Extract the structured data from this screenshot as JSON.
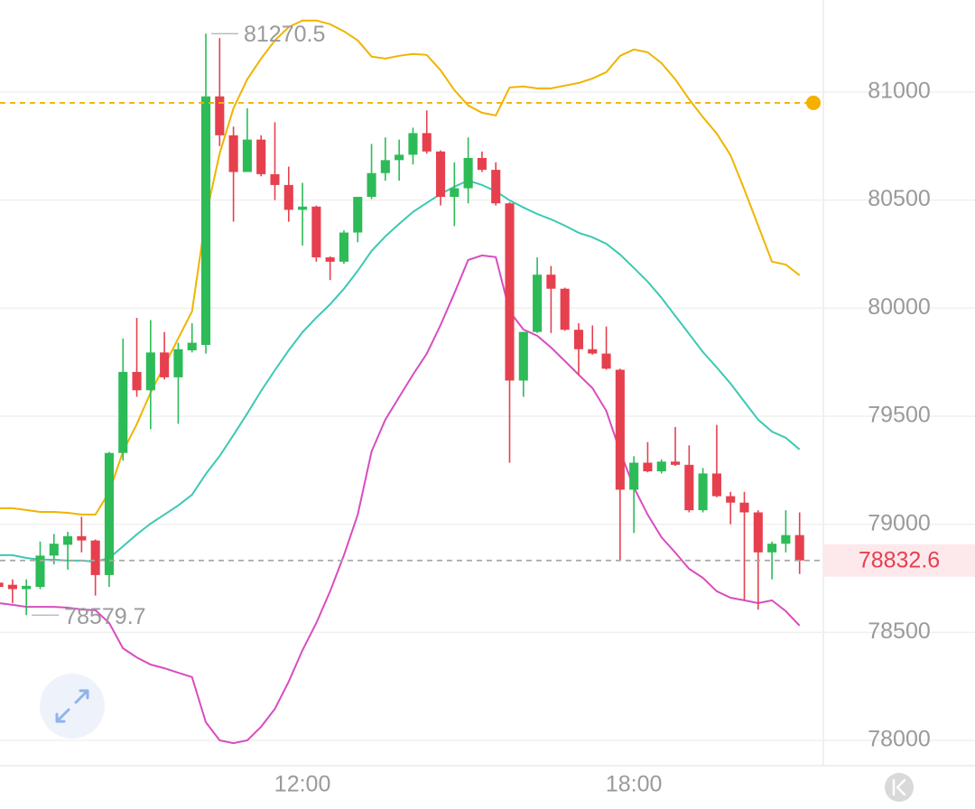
{
  "chart_data": {
    "type": "candlestick",
    "x": [
      6.5,
      6.75,
      7,
      7.25,
      7.5,
      7.75,
      8,
      8.25,
      8.5,
      8.75,
      9,
      9.25,
      9.5,
      9.75,
      10,
      10.25,
      10.5,
      10.75,
      11,
      11.25,
      11.5,
      11.75,
      12,
      12.25,
      12.5,
      12.75,
      13,
      13.25,
      13.5,
      13.75,
      14,
      14.25,
      14.5,
      14.75,
      15,
      15.25,
      15.5,
      15.75,
      16,
      16.25,
      16.5,
      16.75,
      17,
      17.25,
      17.5,
      17.75,
      18,
      18.25,
      18.5,
      18.75,
      19,
      19.25,
      19.5,
      19.75,
      20,
      20.25,
      20.5,
      20.75,
      21
    ],
    "open": [
      78730,
      78720,
      78700,
      78710,
      78855,
      78905,
      78945,
      78925,
      78765,
      79330,
      79705,
      79620,
      79795,
      79680,
      79805,
      79830,
      80980,
      80800,
      80630,
      80780,
      80620,
      80570,
      80455,
      80470,
      80235,
      80215,
      80350,
      80515,
      80625,
      80685,
      80710,
      80810,
      80725,
      80515,
      80555,
      80695,
      80640,
      80485,
      79665,
      79890,
      80155,
      80090,
      79900,
      79810,
      79790,
      79715,
      79160,
      79285,
      79245,
      79290,
      79275,
      79065,
      79235,
      79130,
      79100,
      79055,
      78870,
      78910,
      78950
    ],
    "high": [
      78745,
      78745,
      78745,
      78920,
      78955,
      78965,
      79035,
      78930,
      79335,
      79860,
      79955,
      79945,
      79890,
      79840,
      79930,
      81270.5,
      81250,
      80840,
      80925,
      80800,
      80860,
      80655,
      80580,
      80475,
      80240,
      80360,
      80515,
      80760,
      80790,
      80780,
      80835,
      80915,
      80730,
      80675,
      80790,
      80725,
      80675,
      80490,
      79890,
      80235,
      80195,
      80095,
      79930,
      79920,
      79915,
      79720,
      79315,
      79380,
      79300,
      79450,
      79365,
      79260,
      79460,
      79150,
      79150,
      79065,
      78920,
      79065,
      79055
    ],
    "low": [
      78700,
      78635,
      78579.7,
      78700,
      78815,
      78790,
      78870,
      78670,
      78710,
      79295,
      79590,
      79440,
      79670,
      79465,
      79795,
      79790,
      80750,
      80400,
      80630,
      80610,
      80500,
      80400,
      80290,
      80215,
      80130,
      80205,
      80305,
      80505,
      80590,
      80590,
      80665,
      80715,
      80475,
      80380,
      80485,
      80630,
      80475,
      79285,
      79590,
      79885,
      79885,
      79895,
      79690,
      79785,
      79715,
      78830,
      78960,
      79240,
      79235,
      79270,
      79055,
      79055,
      79125,
      79000,
      78650,
      78605,
      78745,
      78870,
      78770
    ],
    "close": [
      78710,
      78700,
      78715,
      78855,
      78910,
      78945,
      78925,
      78765,
      79330,
      79705,
      79620,
      79795,
      79680,
      79810,
      79840,
      80980,
      80800,
      80630,
      80780,
      80620,
      80570,
      80455,
      80470,
      80235,
      80215,
      80350,
      80515,
      80625,
      80685,
      80710,
      80810,
      80725,
      80515,
      80555,
      80695,
      80640,
      80485,
      79665,
      79890,
      80155,
      80090,
      79900,
      79810,
      79790,
      79720,
      79160,
      79285,
      79245,
      79290,
      79275,
      79065,
      79235,
      79130,
      79100,
      79055,
      78870,
      78910,
      78950,
      78832.6
    ],
    "up_color": "#2dbb58",
    "down_color": "#e6404e",
    "bands": [
      {
        "color": "#f0b400",
        "values": [
          79074,
          79074,
          79066,
          79057,
          79057,
          79053,
          79045,
          79045,
          79149,
          79337,
          79463,
          79609,
          79734,
          79860,
          79985,
          80424,
          80716,
          80925,
          81059,
          81155,
          81239,
          81301,
          81331,
          81331,
          81314,
          81281,
          81239,
          81164,
          81155,
          81168,
          81176,
          81172,
          81101,
          81009,
          80938,
          80904,
          80892,
          81021,
          81026,
          81017,
          81017,
          81030,
          81042,
          81063,
          81092,
          81168,
          81197,
          81184,
          81134,
          81059,
          80967,
          80884,
          80808,
          80708,
          80549,
          80382,
          80215,
          80202,
          80152
        ]
      },
      {
        "color": "#3cc9b2",
        "values": [
          78857,
          78857,
          78844,
          78836,
          78836,
          78832,
          78832,
          78827,
          78844,
          78898,
          78953,
          79003,
          79045,
          79087,
          79137,
          79233,
          79316,
          79413,
          79513,
          79617,
          79713,
          79805,
          79889,
          79956,
          80018,
          80090,
          80173,
          80265,
          80332,
          80390,
          80445,
          80487,
          80528,
          80562,
          80591,
          80570,
          80541,
          80499,
          80466,
          80436,
          80411,
          80382,
          80349,
          80328,
          80298,
          80248,
          80186,
          80123,
          80048,
          79964,
          79881,
          79797,
          79726,
          79651,
          79567,
          79484,
          79429,
          79400,
          79346
        ]
      },
      {
        "color": "#d94cbf",
        "values": [
          78635,
          78627,
          78618,
          78618,
          78618,
          78614,
          78606,
          78602,
          78543,
          78426,
          78384,
          78351,
          78334,
          78313,
          78293,
          78084,
          78000,
          77987,
          78000,
          78063,
          78146,
          78272,
          78418,
          78543,
          78690,
          78857,
          79045,
          79337,
          79484,
          79588,
          79692,
          79789,
          79922,
          80069,
          80223,
          80244,
          80236,
          79985,
          79901,
          79872,
          79818,
          79755,
          79692,
          79630,
          79525,
          79337,
          79170,
          79045,
          78940,
          78869,
          78794,
          78752,
          78690,
          78660,
          78648,
          78635,
          78648,
          78598,
          78531
        ]
      }
    ],
    "xlim": [
      6.523,
      21.43
    ],
    "xticks": [
      {
        "value": 12,
        "label": "12:00"
      },
      {
        "value": 18,
        "label": "18:00"
      }
    ],
    "ylim": [
      77883,
      81426
    ],
    "yticks": [
      78000,
      78500,
      79000,
      79500,
      80000,
      80500,
      81000
    ],
    "grid": true,
    "max_label": 81270.5,
    "min_label": 78579.7,
    "last_price": 78832.6,
    "alert_price": 80950
  }
}
